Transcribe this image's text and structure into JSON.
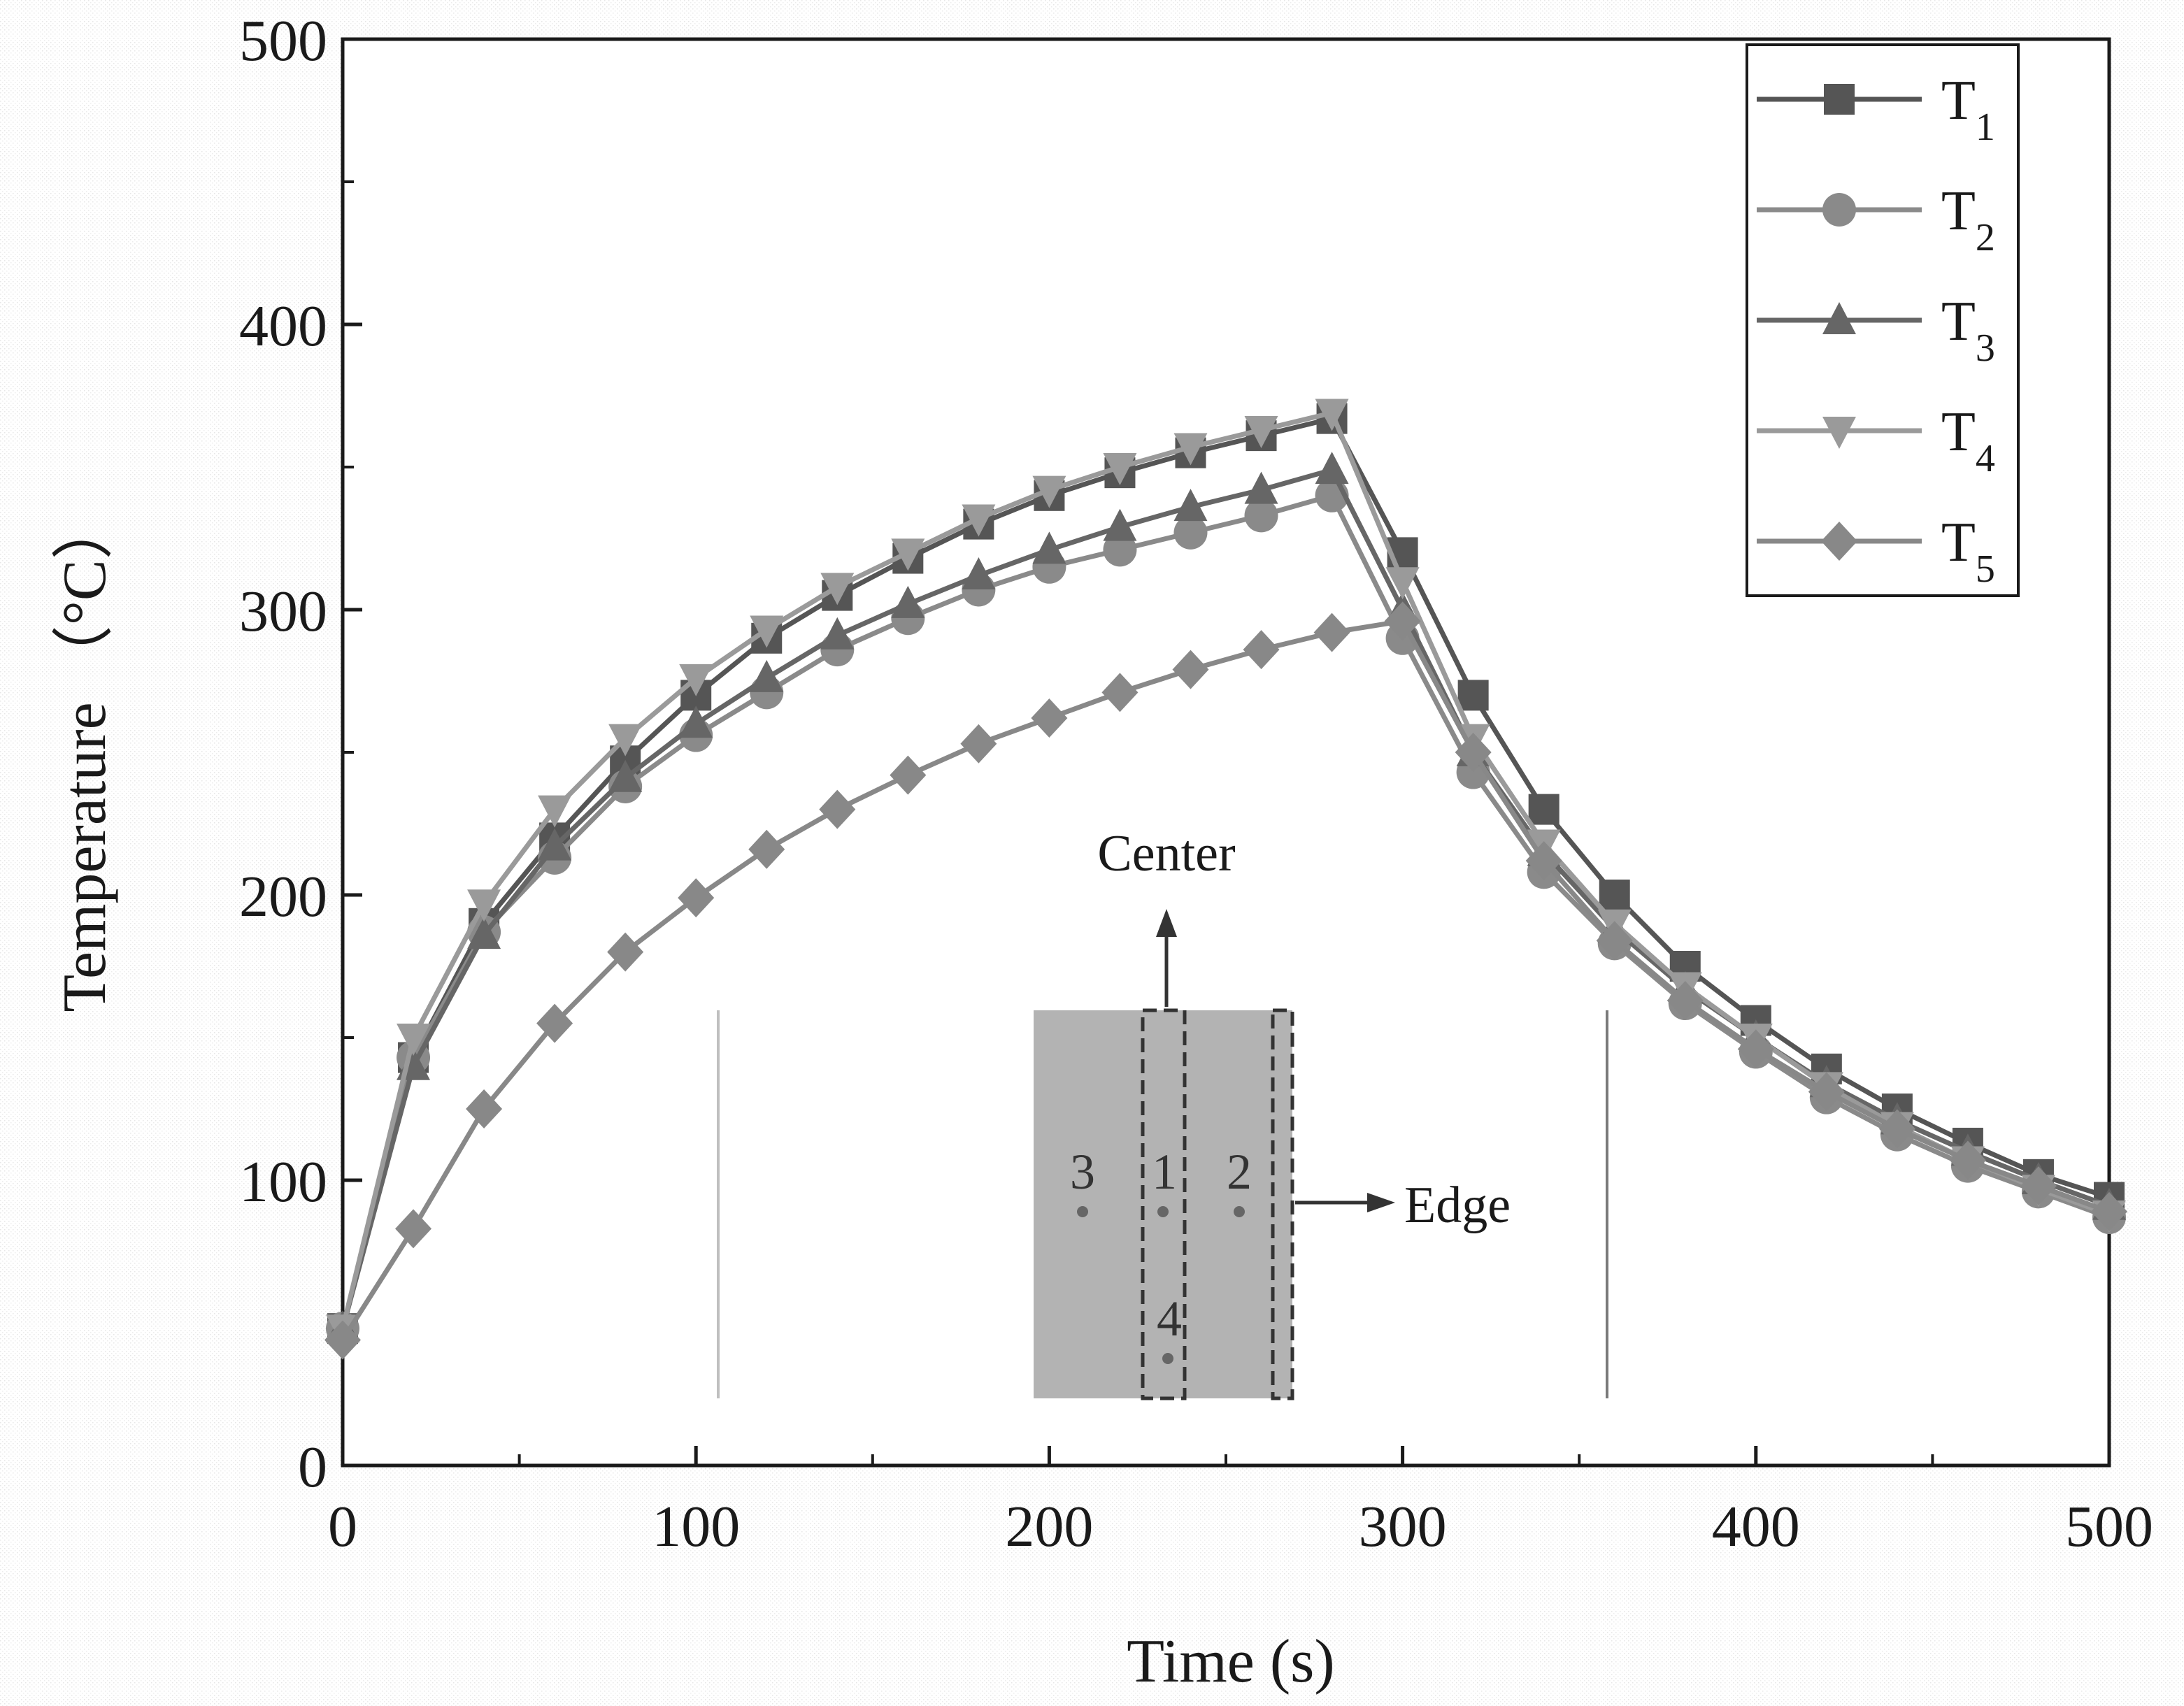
{
  "chart_data": {
    "type": "line",
    "title": "",
    "xlabel": "Time (s)",
    "ylabel": "Temperature （°C）",
    "xlim": [
      0,
      500
    ],
    "ylim": [
      0,
      500
    ],
    "xticks": [
      0,
      100,
      200,
      300,
      400,
      500
    ],
    "yticks": [
      0,
      100,
      200,
      300,
      400,
      500
    ],
    "grid": false,
    "legend": "top-right",
    "x": [
      0,
      20,
      40,
      60,
      80,
      100,
      120,
      140,
      160,
      180,
      200,
      220,
      240,
      260,
      280,
      300,
      320,
      340,
      360,
      380,
      400,
      420,
      440,
      460,
      480,
      500
    ],
    "series": [
      {
        "name": "T",
        "sub": "1",
        "marker": "square",
        "color": "#555555",
        "values": [
          48,
          143,
          190,
          220,
          247,
          270,
          290,
          305,
          318,
          330,
          340,
          348,
          355,
          361,
          367,
          320,
          270,
          230,
          200,
          175,
          156,
          139,
          125,
          113,
          102,
          94
        ]
      },
      {
        "name": "T",
        "sub": "2",
        "marker": "circle",
        "color": "#8a8a8a",
        "values": [
          48,
          143,
          187,
          213,
          238,
          256,
          271,
          286,
          297,
          307,
          315,
          321,
          327,
          333,
          340,
          290,
          243,
          208,
          183,
          162,
          145,
          129,
          116,
          105,
          96,
          87
        ]
      },
      {
        "name": "T",
        "sub": "3",
        "marker": "triangle-up",
        "color": "#666666",
        "values": [
          48,
          140,
          186,
          217,
          241,
          260,
          276,
          291,
          302,
          312,
          321,
          329,
          336,
          342,
          349,
          300,
          250,
          215,
          188,
          167,
          150,
          134,
          121,
          110,
          100,
          91
        ]
      },
      {
        "name": "T",
        "sub": "4",
        "marker": "triangle-down",
        "color": "#9a9a9a",
        "values": [
          48,
          150,
          197,
          230,
          255,
          276,
          293,
          308,
          320,
          332,
          342,
          350,
          357,
          363,
          369,
          310,
          255,
          218,
          190,
          168,
          150,
          133,
          119,
          107,
          97,
          88
        ]
      },
      {
        "name": "T",
        "sub": "5",
        "marker": "diamond",
        "color": "#888888",
        "values": [
          44,
          83,
          125,
          155,
          180,
          199,
          216,
          230,
          242,
          253,
          262,
          271,
          279,
          286,
          292,
          296,
          250,
          212,
          184,
          163,
          146,
          131,
          118,
          107,
          98,
          89
        ]
      }
    ],
    "annotations": {
      "center_label": "Center",
      "edge_label": "Edge",
      "points": [
        "3",
        "1",
        "2",
        "4"
      ]
    }
  }
}
